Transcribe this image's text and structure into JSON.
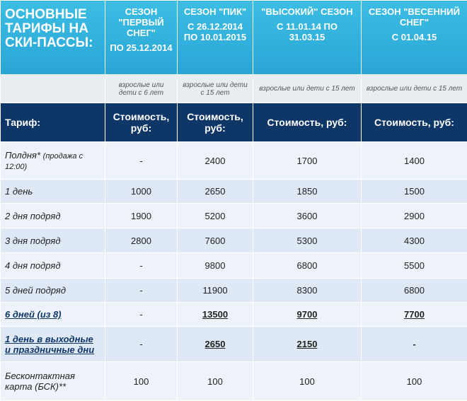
{
  "header": {
    "title": "ОСНОВНЫЕ ТАРИФЫ НА СКИ-ПАССЫ:",
    "seasons": [
      {
        "name": "СЕЗОН \"ПЕРВЫЙ СНЕГ\"",
        "dates": "ПО 25.12.2014"
      },
      {
        "name": "СЕЗОН \"ПИК\"",
        "dates": "С 26.12.2014 ПО 10.01.2015"
      },
      {
        "name": "\"ВЫСОКИЙ\" СЕЗОН",
        "dates": "С 11.01.14 ПО 31.03.15"
      },
      {
        "name": "СЕЗОН \"ВЕСЕННИЙ СНЕГ\"",
        "dates": "С 01.04.15"
      }
    ]
  },
  "notes": [
    "взрослые или дети с 6 лет",
    "взрослые или дети с 15 лет",
    "взрослые или дети с 15 лет",
    "взрослые или дети с 15 лет"
  ],
  "table": {
    "header": [
      "Тариф:",
      "Стоимость, руб:",
      "Стоимость, руб:",
      "Стоимость, руб:",
      "Стоимость, руб:"
    ],
    "rows": [
      {
        "name": "Полдня*",
        "note": "(продажа с 12:00)",
        "values": [
          "-",
          2400,
          1700,
          1400
        ]
      },
      {
        "name": "1 день",
        "values": [
          1000,
          2650,
          1850,
          1500
        ]
      },
      {
        "name": "2 дня подряд",
        "values": [
          1900,
          5200,
          3600,
          2900
        ]
      },
      {
        "name": "3 дня подряд",
        "values": [
          2800,
          7600,
          5300,
          4300
        ]
      },
      {
        "name": "4 дня подряд",
        "values": [
          "-",
          9800,
          6800,
          5500
        ]
      },
      {
        "name": "5 дней подряд",
        "values": [
          "-",
          11900,
          8300,
          6800
        ]
      },
      {
        "name": "6 дней (из 8)",
        "values": [
          "-",
          13500,
          9700,
          7700
        ]
      },
      {
        "name": "1 день в выходные и праздничные дни",
        "values": [
          "-",
          2650,
          2150,
          "-"
        ]
      },
      {
        "name": "Бесконтактная карта (БСК)**",
        "values": [
          100,
          100,
          100,
          100
        ]
      }
    ]
  }
}
